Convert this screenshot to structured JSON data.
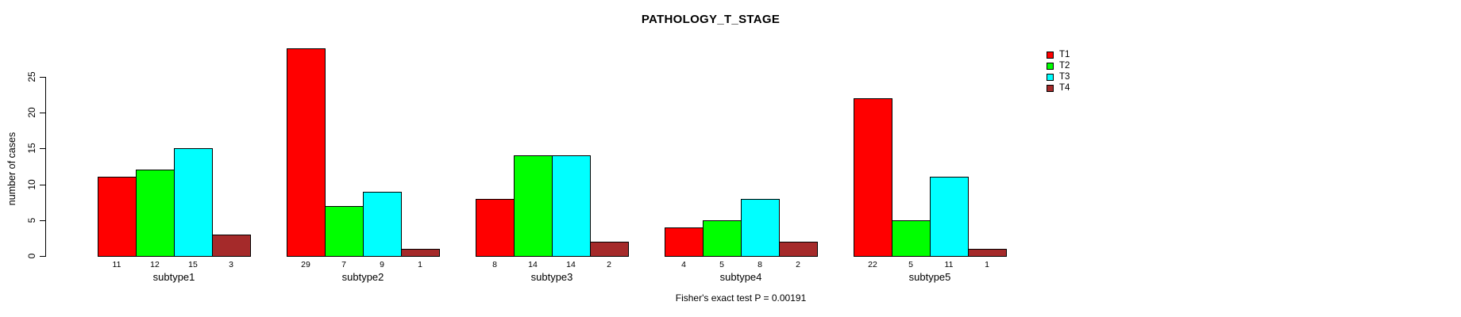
{
  "title": "PATHOLOGY_T_STAGE",
  "footer_note": "Fisher's exact test P = 0.00191",
  "chart_data": {
    "type": "bar",
    "title": "PATHOLOGY_T_STAGE",
    "xlabel": "",
    "ylabel": "number of cases",
    "categories": [
      "subtype1",
      "subtype2",
      "subtype3",
      "subtype4",
      "subtype5"
    ],
    "series": [
      {
        "name": "T1",
        "color": "#FF0000",
        "values": [
          11,
          29,
          8,
          4,
          22
        ]
      },
      {
        "name": "T2",
        "color": "#00FF00",
        "values": [
          12,
          7,
          14,
          5,
          5
        ]
      },
      {
        "name": "T3",
        "color": "#00FFFF",
        "values": [
          15,
          9,
          14,
          8,
          11
        ]
      },
      {
        "name": "T4",
        "color": "#A52A2A",
        "values": [
          3,
          1,
          2,
          2,
          1
        ]
      }
    ],
    "bar_value_labels": [
      [
        11,
        12,
        15,
        3
      ],
      [
        29,
        7,
        9,
        1
      ],
      [
        8,
        14,
        14,
        2
      ],
      [
        4,
        5,
        8,
        2
      ],
      [
        22,
        5,
        11,
        1
      ]
    ],
    "yticks": [
      0,
      5,
      10,
      15,
      20,
      25
    ],
    "ylim": [
      0,
      29
    ],
    "grid": false,
    "legend_position": "right",
    "annotation": "Fisher's exact test P = 0.00191"
  }
}
